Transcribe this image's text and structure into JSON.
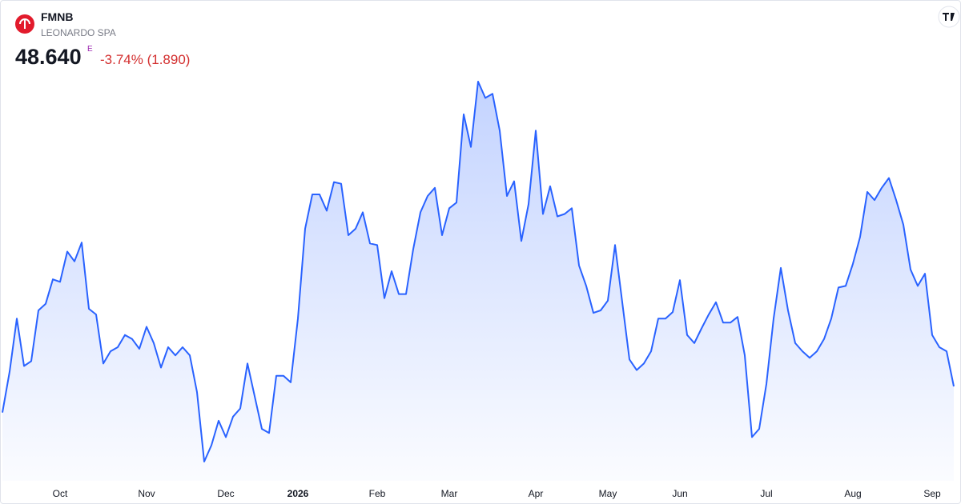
{
  "header": {
    "symbol": "FMNB",
    "name": "LEONARDO SPA",
    "price": "48.640",
    "price_flag": "E",
    "change": "-3.74% (1.890)"
  },
  "chart_data": {
    "type": "area",
    "color": "#2962ff",
    "categories": [
      null,
      null,
      null,
      null,
      null,
      null,
      null,
      null,
      "Oct",
      null,
      null,
      null,
      null,
      null,
      null,
      null,
      null,
      null,
      null,
      null,
      "Nov",
      null,
      null,
      null,
      null,
      null,
      null,
      null,
      null,
      null,
      null,
      "Dec",
      null,
      null,
      null,
      null,
      null,
      null,
      null,
      null,
      null,
      "2026",
      null,
      null,
      null,
      null,
      null,
      null,
      null,
      null,
      null,
      null,
      "Feb",
      null,
      null,
      null,
      null,
      null,
      null,
      null,
      null,
      null,
      "Mar",
      null,
      null,
      null,
      null,
      null,
      null,
      null,
      null,
      null,
      null,
      null,
      "Apr",
      null,
      null,
      null,
      null,
      null,
      null,
      null,
      null,
      null,
      "May",
      null,
      null,
      null,
      null,
      null,
      null,
      null,
      null,
      null,
      "Jun",
      null,
      null,
      null,
      null,
      null,
      null,
      null,
      null,
      null,
      null,
      null,
      "Jul",
      null,
      null,
      null,
      null,
      null,
      null,
      null,
      null,
      null,
      null,
      null,
      "Aug",
      null,
      null,
      null,
      null,
      null,
      null,
      null,
      null,
      null,
      null,
      "Sep",
      null,
      null,
      null
    ],
    "values": [
      47.68,
      49.18,
      51.13,
      49.39,
      49.57,
      51.43,
      51.67,
      52.57,
      52.48,
      53.59,
      53.23,
      53.92,
      51.49,
      51.28,
      49.48,
      49.93,
      50.08,
      50.53,
      50.38,
      50.02,
      50.83,
      50.23,
      49.33,
      50.08,
      49.78,
      50.08,
      49.78,
      48.43,
      45.88,
      46.48,
      47.38,
      46.78,
      47.53,
      47.83,
      49.48,
      48.28,
      47.08,
      46.93,
      49.03,
      49.03,
      48.79,
      51.13,
      54.43,
      55.69,
      55.69,
      55.09,
      56.14,
      56.08,
      54.19,
      54.43,
      55.03,
      53.89,
      53.83,
      51.88,
      52.87,
      52.03,
      52.03,
      53.68,
      55.03,
      55.63,
      55.93,
      54.19,
      55.18,
      55.39,
      58.63,
      57.43,
      59.83,
      59.23,
      59.38,
      58.03,
      55.63,
      56.17,
      53.98,
      55.33,
      58.03,
      54.97,
      55.99,
      54.88,
      54.97,
      55.18,
      53.08,
      52.33,
      51.34,
      51.43,
      51.79,
      53.83,
      51.73,
      49.63,
      49.24,
      49.48,
      49.93,
      51.13,
      51.13,
      51.37,
      52.54,
      50.53,
      50.23,
      50.77,
      51.28,
      51.73,
      50.98,
      50.98,
      51.19,
      49.78,
      46.78,
      47.08,
      48.73,
      51.13,
      52.99,
      51.43,
      50.23,
      49.93,
      49.69,
      49.93,
      50.38,
      51.13,
      52.27,
      52.33,
      53.14,
      54.13,
      55.78,
      55.48,
      55.93,
      56.29,
      55.48,
      54.58,
      52.93,
      52.33,
      52.78,
      50.53,
      50.08,
      49.93,
      48.64
    ]
  }
}
